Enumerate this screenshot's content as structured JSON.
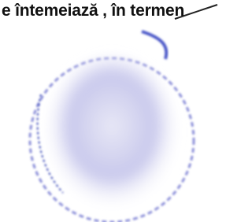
{
  "document": {
    "text_line": "e întemeiază , în termen"
  }
}
